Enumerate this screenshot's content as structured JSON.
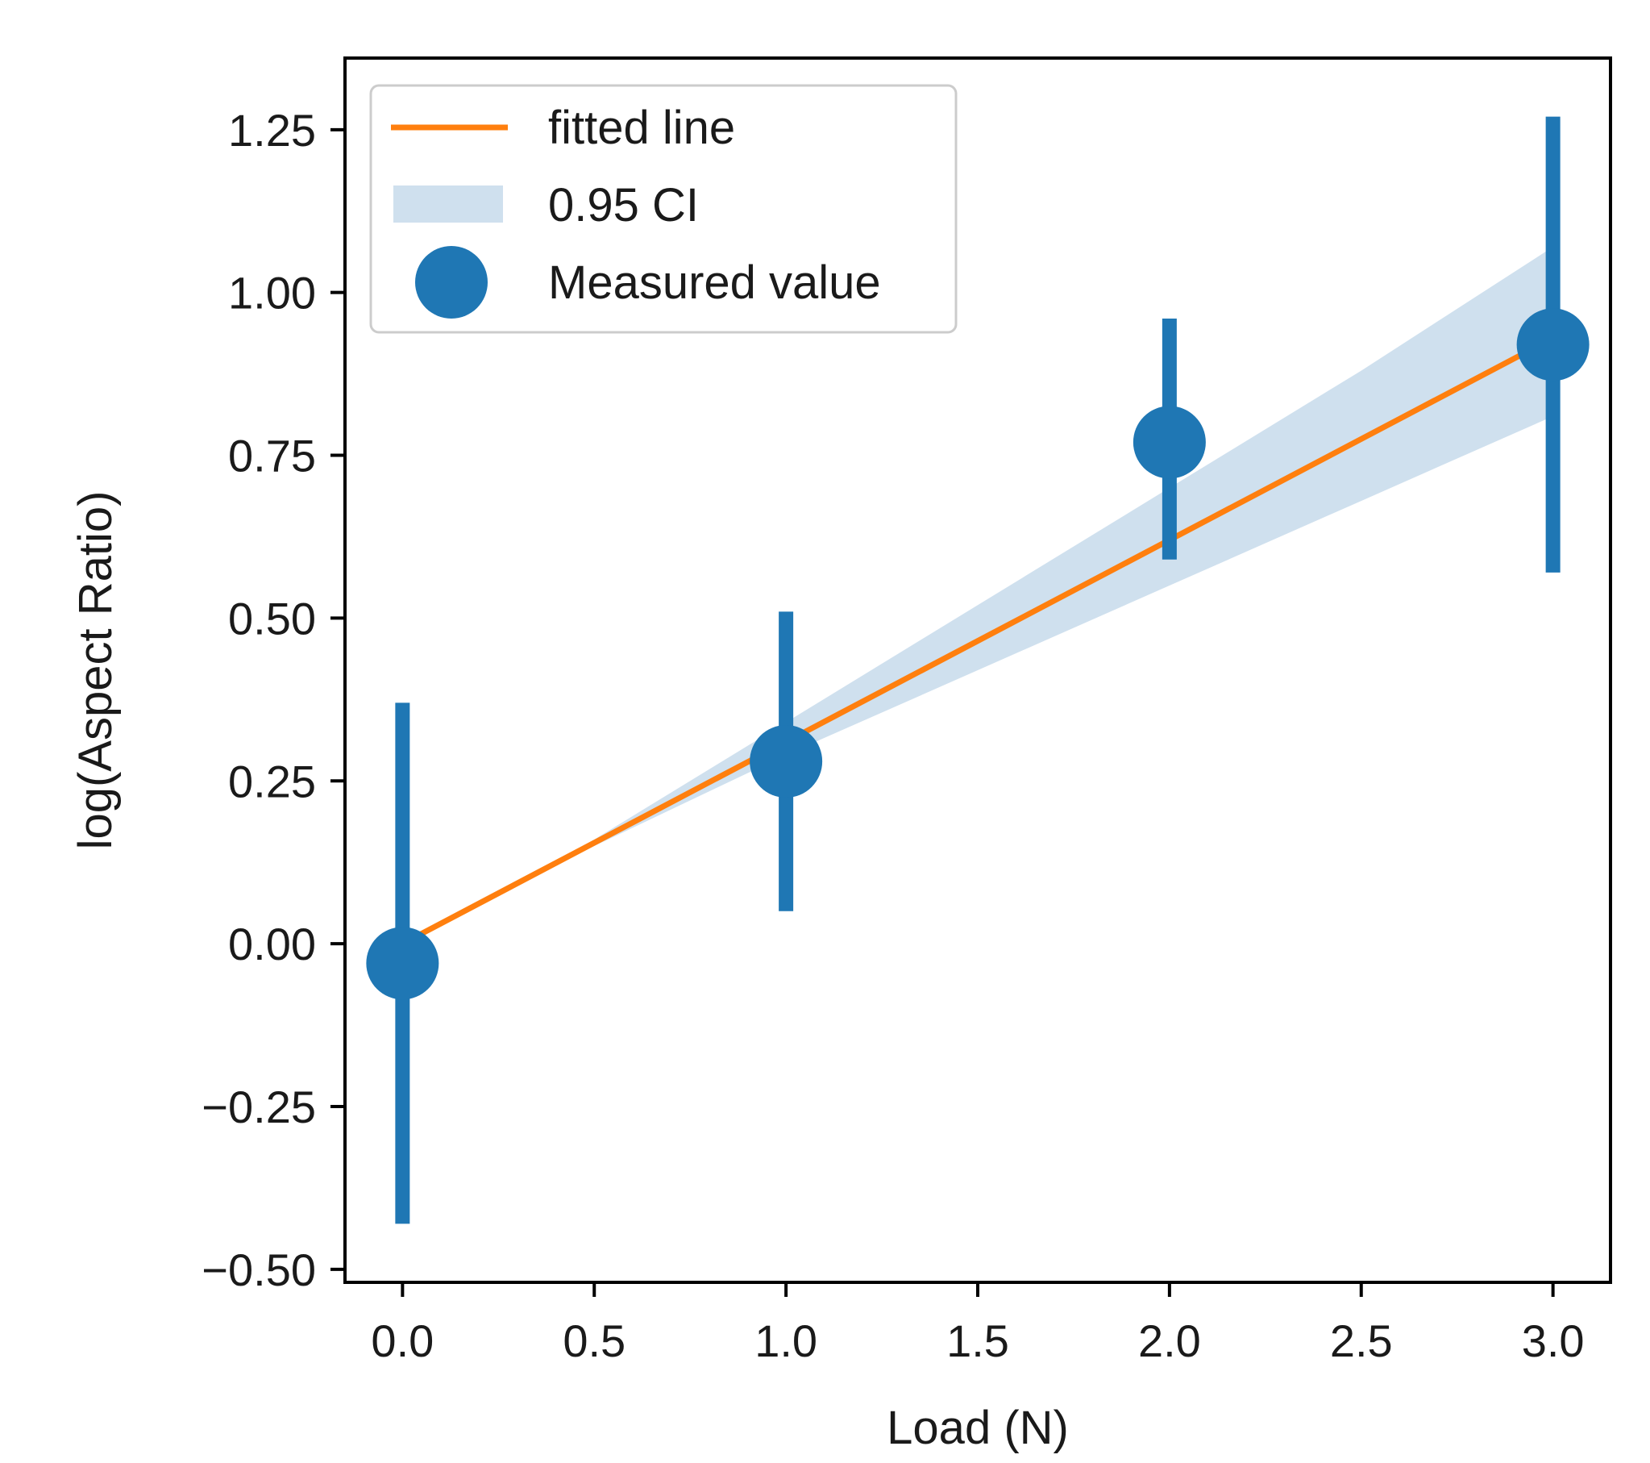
{
  "chart_data": {
    "type": "scatter",
    "xlabel": "Load (N)",
    "ylabel": "log(Aspect Ratio)",
    "xlim": [
      -0.15,
      3.15
    ],
    "ylim": [
      -0.52,
      1.36
    ],
    "x_ticks": [
      0.0,
      0.5,
      1.0,
      1.5,
      2.0,
      2.5,
      3.0
    ],
    "x_tick_labels": [
      "0.0",
      "0.5",
      "1.0",
      "1.5",
      "2.0",
      "2.5",
      "3.0"
    ],
    "y_ticks": [
      -0.5,
      -0.25,
      0.0,
      0.25,
      0.5,
      0.75,
      1.0,
      1.25
    ],
    "y_tick_labels": [
      "−0.50",
      "−0.25",
      "0.00",
      "0.25",
      "0.50",
      "0.75",
      "1.00",
      "1.25"
    ],
    "legend_position": "top-left",
    "legend": [
      "fitted line",
      "0.95 CI",
      "Measured value"
    ],
    "fitted_line": {
      "x": [
        0.0,
        3.0
      ],
      "y": [
        0.0,
        0.93
      ]
    },
    "ci_band": {
      "x": [
        0.0,
        0.5,
        1.0,
        1.5,
        2.0,
        2.5,
        3.0
      ],
      "lower": [
        0.0,
        0.15,
        0.29,
        0.42,
        0.55,
        0.68,
        0.81
      ],
      "upper": [
        0.0,
        0.16,
        0.34,
        0.52,
        0.7,
        0.88,
        1.07
      ]
    },
    "measured": {
      "x": [
        0.0,
        1.0,
        2.0,
        3.0
      ],
      "y": [
        -0.03,
        0.28,
        0.77,
        0.92
      ],
      "err_low": [
        -0.43,
        0.05,
        0.59,
        0.57
      ],
      "err_high": [
        0.37,
        0.51,
        0.96,
        1.27
      ]
    },
    "colors": {
      "fitted_line": "#ff7f0e",
      "ci_band": "#cfe0ee",
      "measured": "#1f77b4",
      "legend_border": "#cccccc"
    }
  }
}
